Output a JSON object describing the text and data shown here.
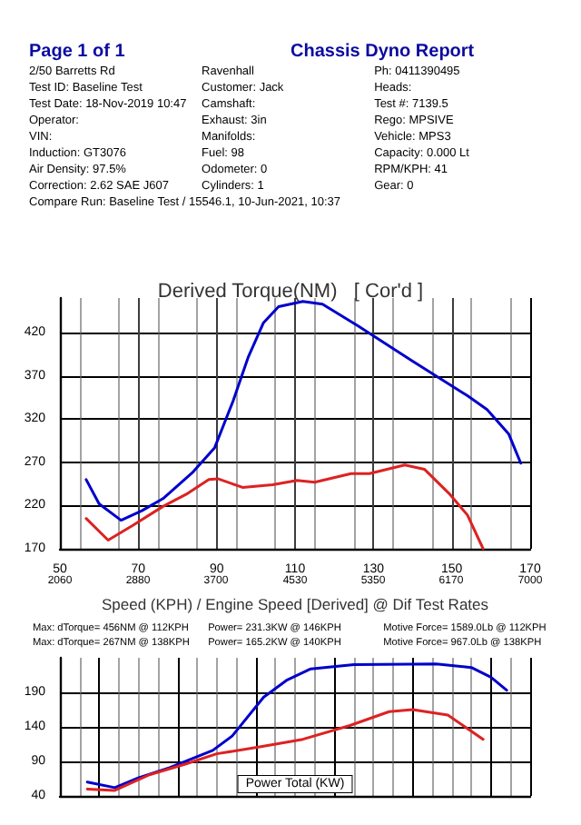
{
  "chart_data": [
    {
      "type": "line",
      "title": "Derived Torque(NM)   [ Cor'd ]",
      "xlabel": "Speed (KPH) / Engine Speed [Derived] @ Dif Test Rates",
      "annotations": [
        "Page 1 of 1",
        "Chassis Dyno Report",
        "2/50 Barretts Rd",
        "Ravenhall",
        "Ph: 0411390495",
        "Test ID: Baseline Test",
        "Customer: Jack",
        "Heads:",
        "Test Date: 18-Nov-2019 10:47",
        "Camshaft:",
        "Test #: 7139.5",
        "Operator:",
        "Exhaust: 3in",
        "Rego: MPSIVE",
        "VIN:",
        "Manifolds:",
        "Vehicle: MPS3",
        "Induction: GT3076",
        "Fuel: 98",
        "Capacity: 0.000 Lt",
        "Air Density: 97.5%",
        "Odometer: 0",
        "RPM/KPH: 41",
        "Correction: 2.62 SAE J607",
        "Cylinders: 1",
        "Gear: 0",
        "Compare Run: Baseline Test / 15546.1, 10-Jun-2021, 10:37"
      ],
      "series": [
        {
          "color": "#0000cc",
          "x": [
            56.7,
            60,
            65.6,
            70.9,
            76.3,
            84,
            89.5,
            94.2,
            98,
            101.9,
            105.8,
            112,
            117,
            126,
            140,
            154,
            159,
            164.5,
            167.6
          ],
          "values": [
            250,
            222,
            203,
            214,
            228,
            259,
            287,
            341,
            391,
            431,
            450,
            456,
            453,
            428,
            387,
            347,
            331,
            303,
            269
          ]
        },
        {
          "color": "#dd2222",
          "x": [
            56.7,
            62.3,
            68.6,
            76.3,
            82.6,
            88,
            90.3,
            96.6,
            104.3,
            110.5,
            115,
            124.3,
            129,
            138,
            143,
            149.3,
            154,
            158
          ],
          "values": [
            205,
            180,
            197,
            219,
            234,
            250,
            251,
            241,
            244,
            249,
            247,
            257,
            257,
            267,
            262,
            234,
            209,
            170
          ]
        }
      ],
      "xlim": [
        50,
        170
      ],
      "xticks": [
        50,
        70,
        90,
        110,
        130,
        150,
        170
      ],
      "x2lim": [
        2060,
        7000
      ],
      "x2ticks": [
        2060,
        2880,
        3700,
        4530,
        5350,
        6170,
        7000
      ],
      "ylim": [
        170,
        460
      ],
      "yticks": [
        170,
        220,
        270,
        320,
        370,
        420
      ],
      "grid": true,
      "marker": "none",
      "line_style": "solid"
    },
    {
      "type": "line",
      "xlabel": "Power Total (KW)",
      "annotations": [
        "Max: dTorque= 456NM @ 112KPH",
        "Power= 231.3KW @ 146KPH",
        "Motive Force= 1589.0Lb @ 112KPH",
        "Max: dTorque= 267NM @ 138KPH",
        "Power= 165.2KW @ 140KPH",
        "Motive Force= 967.0Lb @ 138KPH"
      ],
      "series": [
        {
          "color": "#0000cc",
          "x": [
            57,
            64,
            70,
            78,
            89,
            94,
            102,
            108,
            114,
            125,
            146,
            155,
            160,
            164
          ],
          "values": [
            60,
            52,
            66,
            81,
            106,
            127,
            183,
            208,
            224,
            230,
            231,
            226,
            212,
            193
          ]
        },
        {
          "color": "#dd2222",
          "x": [
            57,
            64,
            73,
            82,
            90,
            101,
            112,
            124,
            134,
            140,
            149,
            158
          ],
          "values": [
            50,
            48,
            71,
            86,
            101,
            111,
            122,
            142,
            162,
            165,
            157,
            122
          ]
        }
      ],
      "xlim": [
        50,
        170
      ],
      "ylim": [
        40,
        240
      ],
      "yticks": [
        40,
        90,
        140,
        190
      ],
      "tick_labels": "y",
      "grid": true,
      "marker": "none",
      "line_style": "solid"
    }
  ]
}
